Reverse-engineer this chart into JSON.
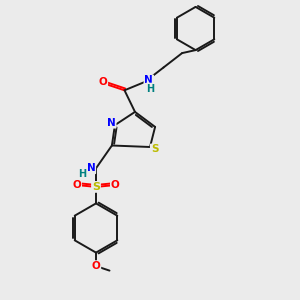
{
  "bg_color": "#ebebeb",
  "bond_color": "#1a1a1a",
  "atom_colors": {
    "N": "#0000ff",
    "O": "#ff0000",
    "S": "#bbbb00",
    "H": "#008080"
  },
  "lw": 1.4
}
